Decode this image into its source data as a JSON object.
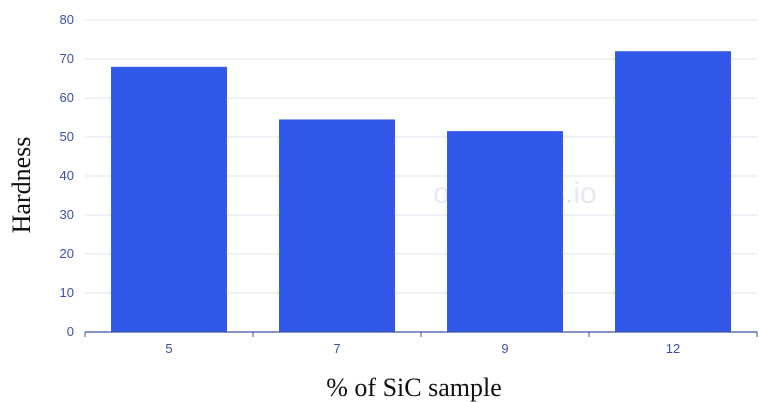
{
  "chart_data": {
    "type": "bar",
    "categories": [
      "5",
      "7",
      "9",
      "12"
    ],
    "values": [
      68,
      54.5,
      51.5,
      72
    ],
    "xlabel": "% of SiC sample",
    "ylabel": "Hardness",
    "ylim": [
      0,
      80
    ],
    "yticks": [
      "0",
      "10",
      "20",
      "30",
      "40",
      "50",
      "60",
      "70",
      "80"
    ],
    "grid": true,
    "bar_color": "#2f57e8",
    "grid_color": "#dfe4f1",
    "axis_color": "#3d4fa8",
    "watermark": "onecharts.io"
  }
}
